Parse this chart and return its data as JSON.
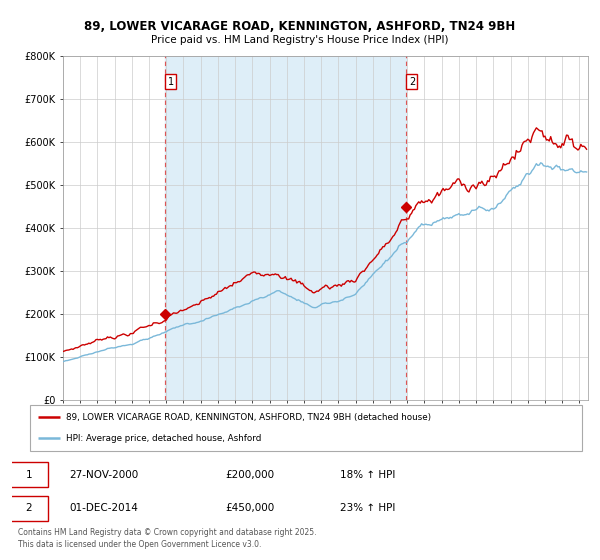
{
  "title_line1": "89, LOWER VICARAGE ROAD, KENNINGTON, ASHFORD, TN24 9BH",
  "title_line2": "Price paid vs. HM Land Registry's House Price Index (HPI)",
  "x_start_year": 1995,
  "x_end_year": 2025,
  "y_min": 0,
  "y_max": 800000,
  "y_ticks": [
    0,
    100000,
    200000,
    300000,
    400000,
    500000,
    600000,
    700000,
    800000
  ],
  "y_tick_labels": [
    "£0",
    "£100K",
    "£200K",
    "£300K",
    "£400K",
    "£500K",
    "£600K",
    "£700K",
    "£800K"
  ],
  "purchase1_date": 2000.9,
  "purchase1_value": 200000,
  "purchase1_label": "1",
  "purchase1_display": "27-NOV-2000",
  "purchase1_price_display": "£200,000",
  "purchase1_hpi_display": "18% ↑ HPI",
  "purchase2_date": 2014.92,
  "purchase2_value": 450000,
  "purchase2_label": "2",
  "purchase2_display": "01-DEC-2014",
  "purchase2_price_display": "£450,000",
  "purchase2_hpi_display": "23% ↑ HPI",
  "hpi_line_color": "#7ab8d9",
  "price_line_color": "#cc0000",
  "shading_color": "#deeef8",
  "dashed_line_color": "#dd5555",
  "background_color": "#ffffff",
  "grid_color": "#cccccc",
  "legend_line1": "89, LOWER VICARAGE ROAD, KENNINGTON, ASHFORD, TN24 9BH (detached house)",
  "legend_line2": "HPI: Average price, detached house, Ashford",
  "footer_text": "Contains HM Land Registry data © Crown copyright and database right 2025.\nThis data is licensed under the Open Government Licence v3.0."
}
